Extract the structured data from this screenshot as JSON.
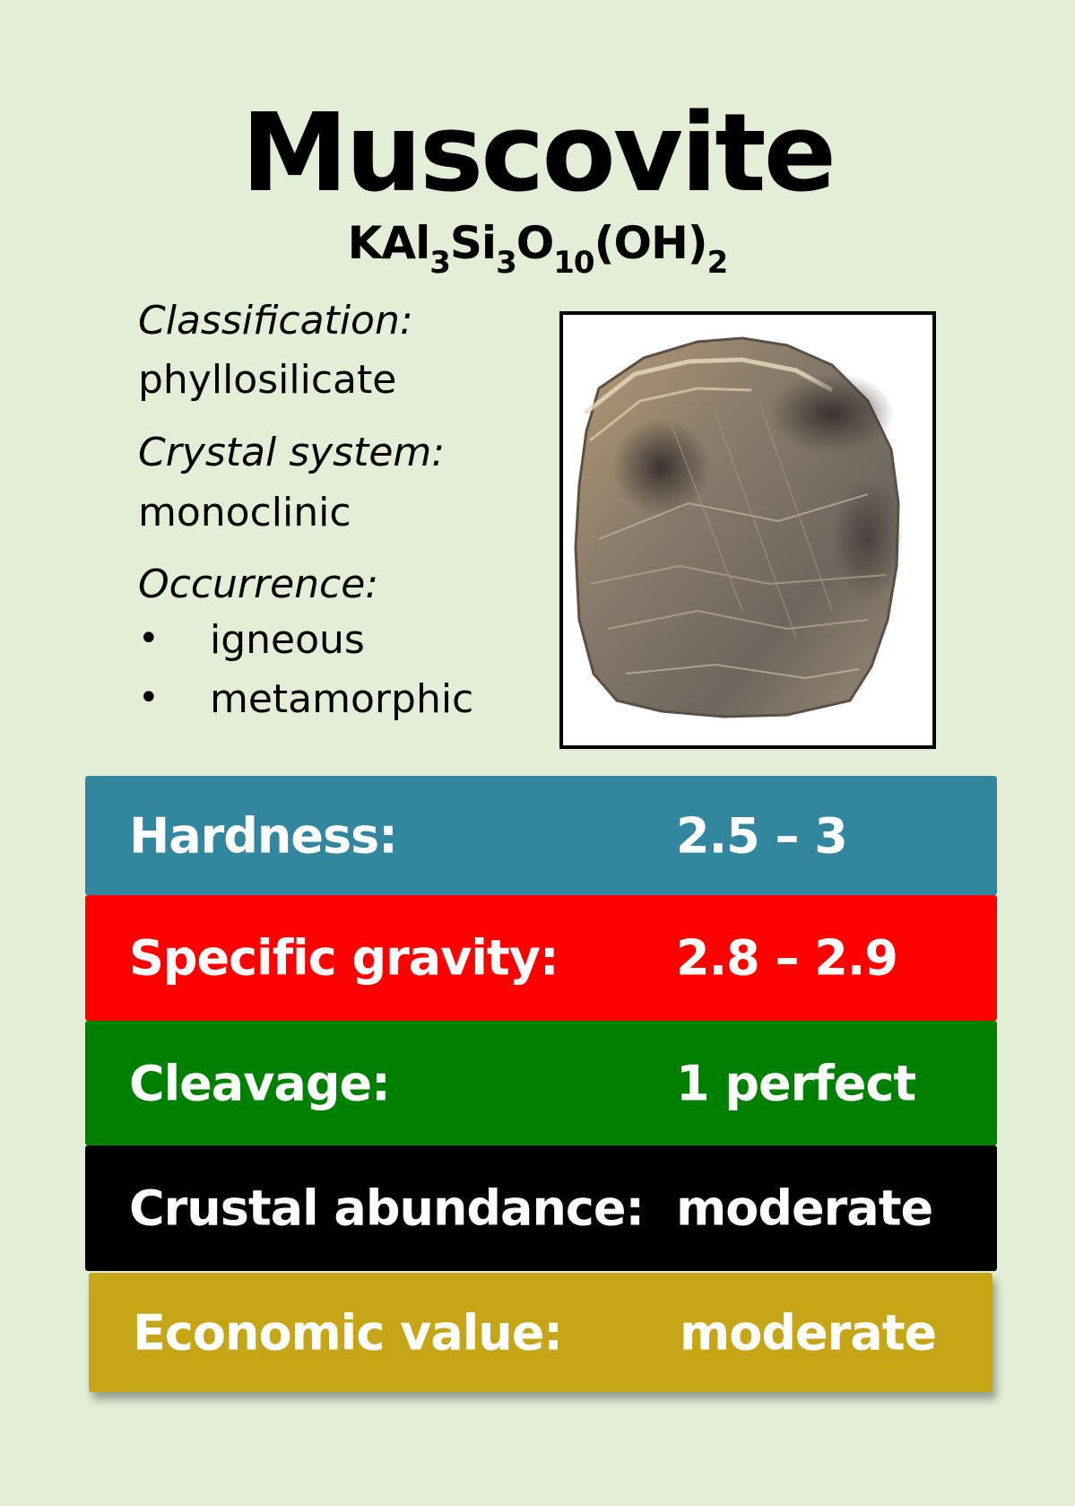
{
  "title": "Muscovite",
  "formula": {
    "parts": [
      "KAl",
      "3",
      "Si",
      "3",
      "O",
      "10",
      "(OH)",
      "2"
    ]
  },
  "info": {
    "classification_label": "Classification:",
    "classification_value": "phyllosilicate",
    "crystal_label": "Crystal system:",
    "crystal_value": "monoclinic",
    "occurrence_label": "Occurrence:",
    "occurrence_items": [
      "igneous",
      "metamorphic"
    ],
    "bullet": "•"
  },
  "properties": [
    {
      "label": "Hardness:",
      "value": "2.5 – 3",
      "color": "#33869f"
    },
    {
      "label": "Specific gravity:",
      "value": "2.8 – 2.9",
      "color": "#ff0000"
    },
    {
      "label": "Cleavage:",
      "value": "1 perfect",
      "color": "#008000"
    },
    {
      "label": "Crustal abundance:",
      "value": "moderate",
      "color": "#000000"
    },
    {
      "label": "Economic value:",
      "value": "moderate",
      "color": "#c6a516"
    }
  ],
  "colors": {
    "background": "#e2efd6"
  }
}
